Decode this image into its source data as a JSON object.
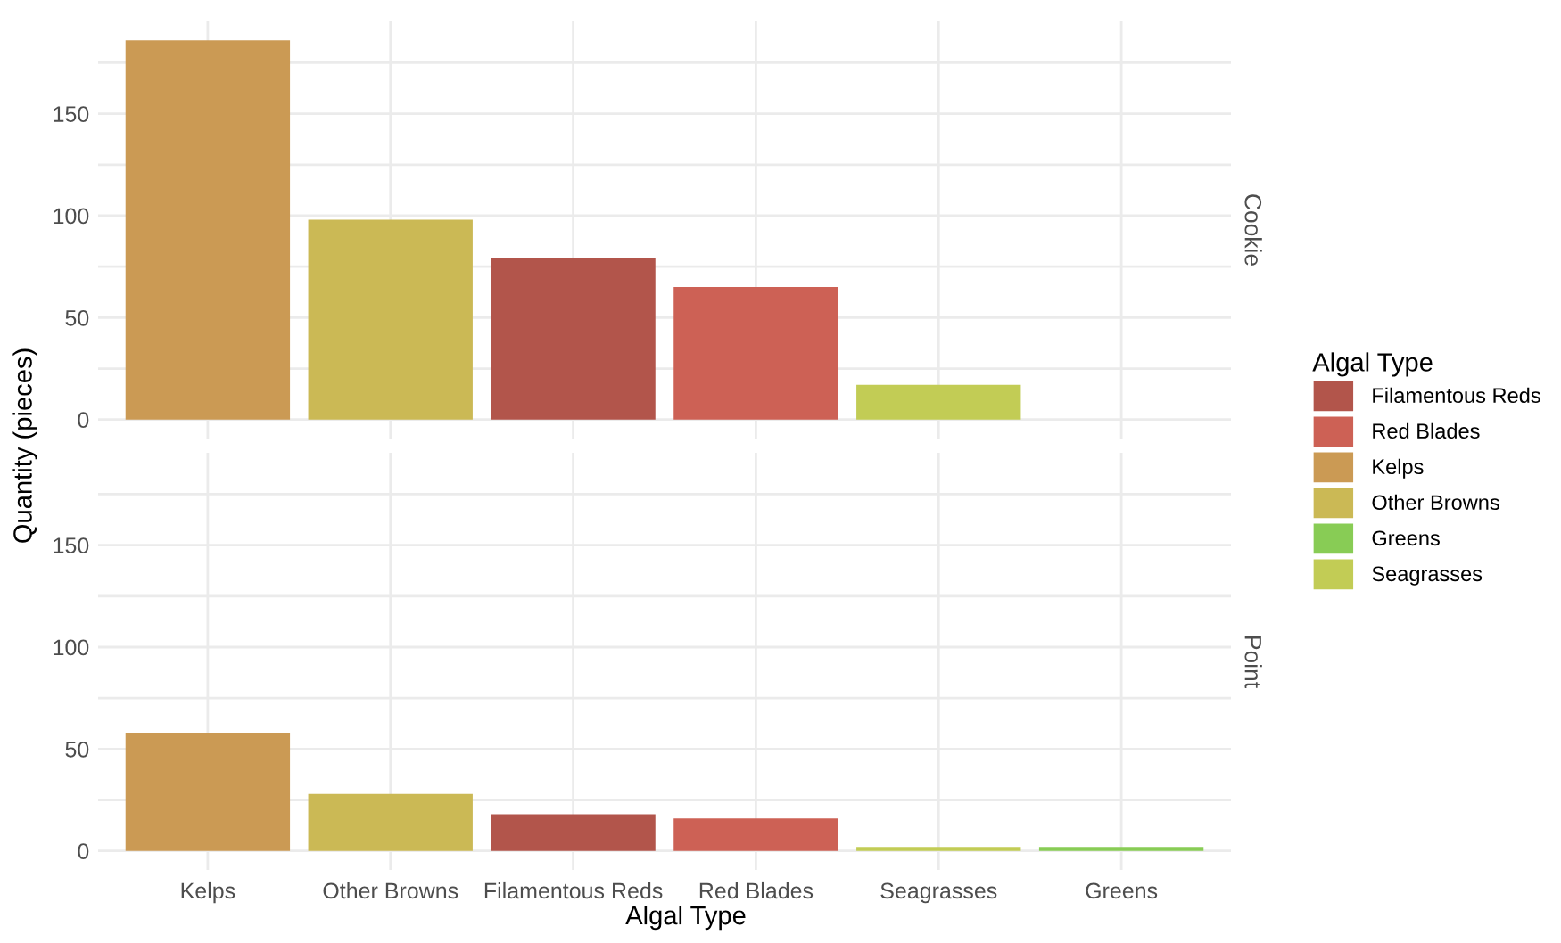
{
  "chart_data": [
    {
      "type": "bar",
      "annotations": [
        "Cookie"
      ],
      "ylabel": "Quantity (pieces)",
      "legend_title": "Algal Type",
      "legend": "right",
      "grid": true,
      "tick_labels": "y",
      "categories": [
        null,
        null,
        null,
        null,
        null,
        null
      ],
      "ylim": [
        -9.3,
        195.3
      ],
      "yticks": [
        0,
        {
          "value": 25,
          "label": null
        },
        50,
        {
          "value": 75,
          "label": null
        },
        100,
        {
          "value": 125,
          "label": null
        },
        150,
        {
          "value": 175,
          "label": null
        }
      ],
      "series": [
        {
          "name": "Filamentous Reds",
          "color": "#b2554b",
          "values": [
            null,
            null,
            79,
            null,
            null,
            null
          ]
        },
        {
          "name": "Red Blades",
          "color": "#cd6155",
          "values": [
            null,
            null,
            null,
            65,
            null,
            null
          ]
        },
        {
          "name": "Kelps",
          "color": "#cb9a54",
          "values": [
            186,
            null,
            null,
            null,
            null,
            null
          ]
        },
        {
          "name": "Other Browns",
          "color": "#cbb955",
          "values": [
            null,
            98,
            null,
            null,
            null,
            null
          ]
        },
        {
          "name": "Greens",
          "color": "#88cc55",
          "values": [
            null,
            null,
            null,
            null,
            null,
            null
          ]
        },
        {
          "name": "Seagrasses",
          "color": "#c2cc55",
          "values": [
            null,
            null,
            null,
            null,
            17,
            null
          ]
        }
      ]
    },
    {
      "type": "bar",
      "annotations": [
        "Point"
      ],
      "xlabel": "Algal Type",
      "grid": true,
      "categories": [
        "Kelps",
        "Other Browns",
        "Filamentous Reds",
        "Red Blades",
        "Seagrasses",
        "Greens"
      ],
      "ylim": [
        -9.3,
        195.3
      ],
      "yticks": [
        0,
        {
          "value": 25,
          "label": null
        },
        50,
        {
          "value": 75,
          "label": null
        },
        100,
        {
          "value": 125,
          "label": null
        },
        150,
        {
          "value": 175,
          "label": null
        }
      ],
      "series": [
        {
          "color": "#b2554b",
          "values": [
            null,
            null,
            18,
            null,
            null,
            null
          ]
        },
        {
          "color": "#cd6155",
          "values": [
            null,
            null,
            null,
            16,
            null,
            null
          ]
        },
        {
          "color": "#cb9a54",
          "values": [
            58,
            null,
            null,
            null,
            null,
            null
          ]
        },
        {
          "color": "#cbb955",
          "values": [
            null,
            28,
            null,
            null,
            null,
            null
          ]
        },
        {
          "color": "#88cc55",
          "values": [
            null,
            null,
            null,
            null,
            null,
            2
          ]
        },
        {
          "color": "#c2cc55",
          "values": [
            null,
            null,
            null,
            null,
            2,
            null
          ]
        }
      ]
    }
  ]
}
